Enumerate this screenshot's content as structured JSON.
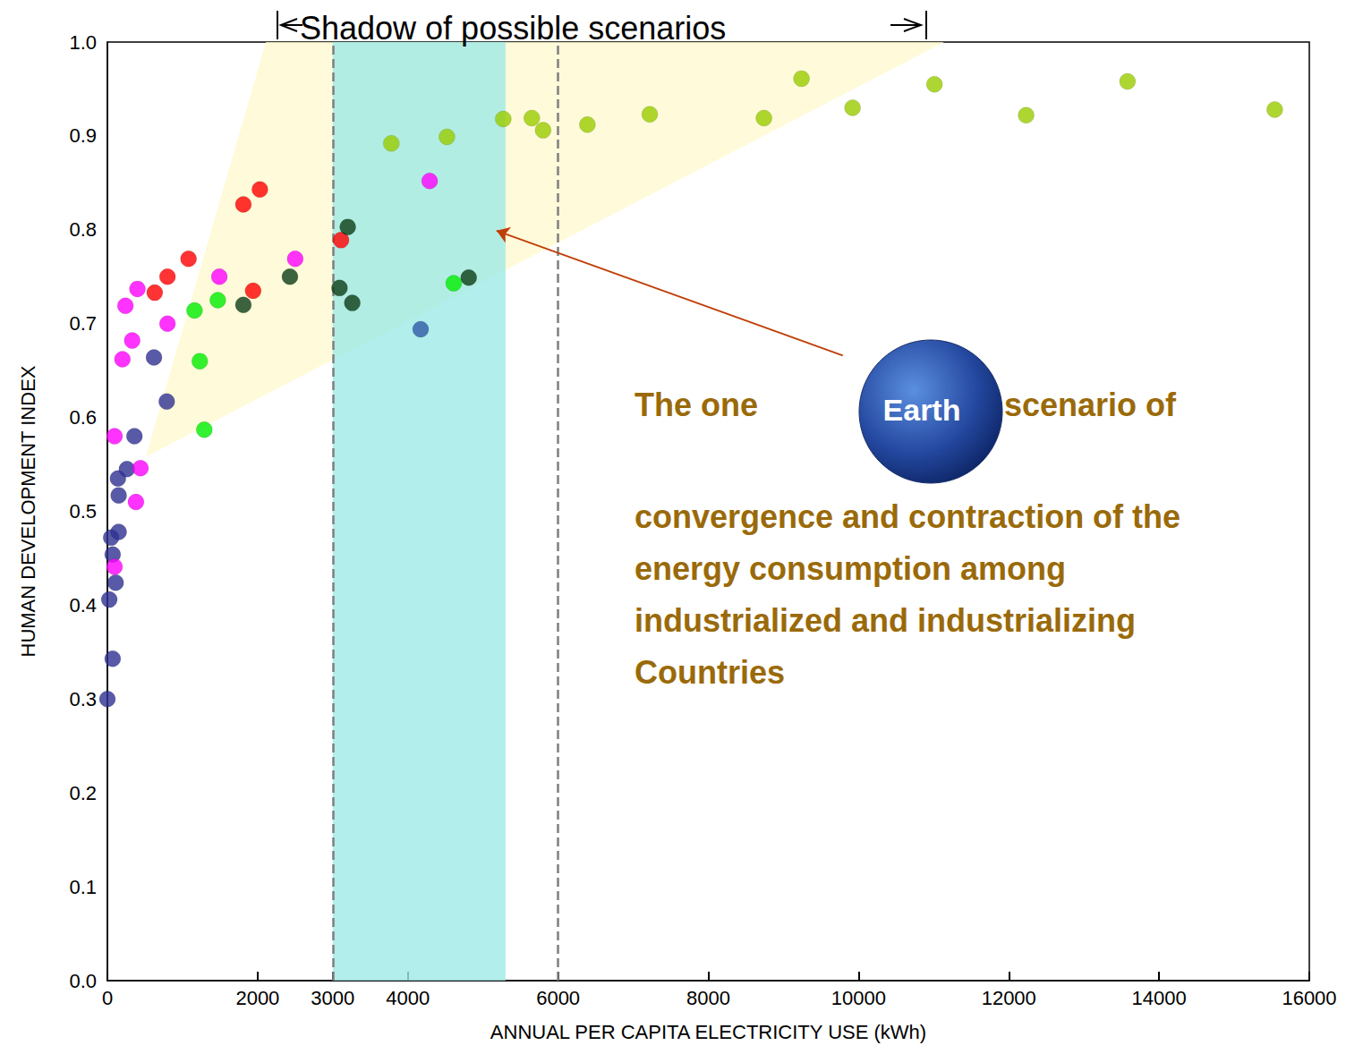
{
  "chart_data": {
    "type": "scatter",
    "title": "Shadow of possible scenarios",
    "x_label": "ANNUAL PER CAPITA ELECTRICITY USE (kWh)",
    "y_label": "HUMAN DEVELOPMENT INDEX",
    "xlim": [
      0,
      16000
    ],
    "xticks": [
      0,
      2000,
      3000,
      4000,
      6000,
      8000,
      10000,
      12000,
      14000,
      16000
    ],
    "ylim": [
      0,
      1
    ],
    "yticks": [
      {
        "value": 0,
        "label": "0.0"
      },
      0.1,
      0.2,
      0.3,
      0.4,
      0.5,
      0.6,
      0.7,
      0.8,
      0.9,
      {
        "value": 1,
        "label": "1.0"
      }
    ],
    "grid": false,
    "series": [
      {
        "color": "#2e3192",
        "marker": "circle",
        "x": [
          0,
          70,
          25,
          110,
          70,
          50,
          150,
          150,
          140,
          260,
          360,
          620,
          790
        ],
        "values": [
          0.3,
          0.343,
          0.406,
          0.424,
          0.454,
          0.472,
          0.478,
          0.517,
          0.535,
          0.545,
          0.58,
          0.664,
          0.617
        ]
      },
      {
        "color": "#2f5aa8",
        "marker": "circle",
        "x": [
          4170
        ],
        "values": [
          0.694
        ]
      },
      {
        "color": "#ff00ff",
        "marker": "circle",
        "x": [
          95,
          95,
          240,
          200,
          330,
          400,
          380,
          440,
          800,
          1490,
          2500,
          4290
        ],
        "values": [
          0.58,
          0.441,
          0.719,
          0.662,
          0.682,
          0.737,
          0.51,
          0.546,
          0.7,
          0.75,
          0.769,
          0.852
        ]
      },
      {
        "color": "#ff0000",
        "marker": "circle",
        "x": [
          630,
          800,
          1080,
          1810,
          2030,
          1940,
          3110
        ],
        "values": [
          0.733,
          0.75,
          0.769,
          0.827,
          0.843,
          0.735,
          0.789
        ]
      },
      {
        "color": "#0b3d16",
        "marker": "circle",
        "x": [
          1810,
          2430,
          3090,
          3200,
          3260,
          4810
        ],
        "values": [
          0.72,
          0.75,
          0.738,
          0.803,
          0.722,
          0.749
        ]
      },
      {
        "color": "#00ee00",
        "marker": "circle",
        "x": [
          1160,
          1230,
          1290,
          1470,
          4610
        ],
        "values": [
          0.714,
          0.66,
          0.587,
          0.725,
          0.743
        ]
      },
      {
        "color": "#99cc00",
        "marker": "circle",
        "x": [
          3780,
          4520,
          5270,
          5650,
          5800,
          6390,
          7220,
          8740,
          9240,
          9920,
          11010,
          12230,
          13580,
          15540
        ],
        "values": [
          0.892,
          0.899,
          0.918,
          0.919,
          0.906,
          0.912,
          0.923,
          0.919,
          0.961,
          0.93,
          0.955,
          0.922,
          0.958,
          0.928
        ]
      }
    ],
    "regions": [
      {
        "color": "#fff9cf",
        "points": [
          [
            510,
            0.558
          ],
          [
            2110,
            1
          ],
          [
            11140,
            1
          ]
        ]
      },
      {
        "color": "#9feae6",
        "points": [
          [
            3000,
            0
          ],
          [
            5300,
            0
          ],
          [
            5300,
            1
          ],
          [
            3000,
            1
          ]
        ]
      }
    ],
    "vlines": {
      "x": [
        3000,
        6000
      ],
      "line_style": "dashed"
    },
    "annotation": {
      "text_before": "The one",
      "icon_label": "Earth",
      "text_after": "scenario of",
      "lines": [
        "convergence and contraction of the",
        "energy consumption among",
        "industrialized and industrializing",
        "Countries"
      ],
      "color": "#9a6a0a",
      "arrow_from": [
        9790,
        0.666
      ],
      "arrow_to": [
        5180,
        0.799
      ]
    }
  }
}
